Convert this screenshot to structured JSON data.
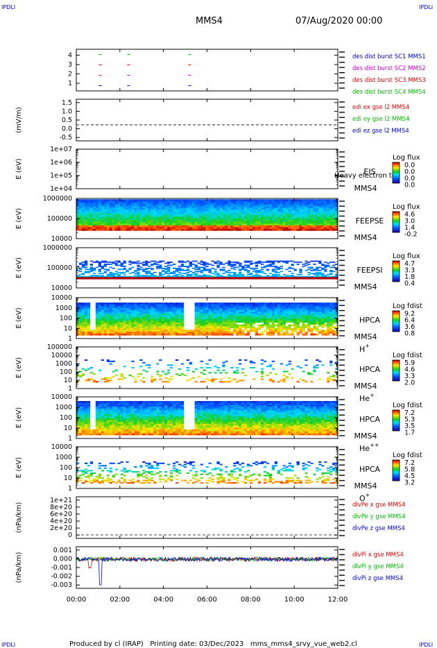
{
  "header": {
    "corner_label": "IPDLI",
    "title": "MMS4",
    "date": "07/Aug/2020 00:00"
  },
  "footer": {
    "text": "Produced by cl (IRAP)   Printing date: 03/Dec/2023   mms_mms4_srvy_vue_web2.cl"
  },
  "time_axis": {
    "ticks": [
      "00:00",
      "02:00",
      "04:00",
      "06:00",
      "08:00",
      "10:00",
      "12:00"
    ],
    "range_hours": [
      0,
      12
    ]
  },
  "colors": {
    "mms1": "#0000cc",
    "mms2": "#cc00cc",
    "mms3": "#dd0000",
    "mms4": "#00bb00"
  },
  "chart_data": [
    {
      "type": "scatter",
      "ylabel": "",
      "yticks": [
        "4",
        "3",
        "2",
        "1"
      ],
      "ylim": [
        0.5,
        4.5
      ],
      "legend": [
        {
          "name": "des dist burst SC1 MMS1",
          "color": "#0000cc"
        },
        {
          "name": "des dist burst SC2 MMS2",
          "color": "#cc00cc"
        },
        {
          "name": "des dist burst SC3 MMS3",
          "color": "#dd0000"
        },
        {
          "name": "des dist burst SC4 MMS4",
          "color": "#00bb00"
        }
      ],
      "series": [
        {
          "y": 4,
          "color": "#00bb00",
          "x": [
            1.1,
            2.4,
            5.2
          ]
        },
        {
          "y": 3,
          "color": "#dd0000",
          "x": [
            1.1,
            2.4,
            5.2
          ]
        },
        {
          "y": 2,
          "color": "#cc00cc",
          "x": [
            1.1,
            2.4,
            5.2
          ]
        },
        {
          "y": 1,
          "color": "#0000cc",
          "x": [
            1.1,
            2.4,
            5.2
          ]
        }
      ]
    },
    {
      "type": "line",
      "ylabel": "(mV/m)",
      "yticks": [
        "1.5",
        "1.0",
        "0.5",
        "0.0",
        "-0.5"
      ],
      "ylim": [
        -1.0,
        1.6
      ],
      "zero_line": true,
      "legend": [
        {
          "name": "edi ex gse l2 MMS4",
          "color": "#dd0000"
        },
        {
          "name": "edi ey gse l2 MMS4",
          "color": "#00bb00"
        },
        {
          "name": "edi ez gse l2 MMS4",
          "color": "#0000cc"
        }
      ]
    },
    {
      "type": "heatmap",
      "ylabel": "E (eV)",
      "yticks": [
        "1e+07",
        "1e+06",
        "1e+05",
        "1e+04"
      ],
      "side_label": "EIS",
      "side_extra": "Heavy electron to",
      "spacecraft": "MMS4",
      "colorbar_title": "Log flux",
      "colorbar_ticks": [
        "0.0",
        "0.0",
        "0.0",
        "0.0"
      ]
    },
    {
      "type": "heatmap",
      "ylabel": "E (eV)",
      "yticks": [
        "1000000",
        "100000",
        "10000"
      ],
      "side_label": "FEEPSE",
      "spacecraft": "MMS4",
      "colorbar_title": "Log flux",
      "colorbar_ticks": [
        "4.6",
        "3.0",
        "1.4",
        "-0.2"
      ]
    },
    {
      "type": "heatmap",
      "ylabel": "E (eV)",
      "yticks": [
        "1000000",
        "100000",
        "10000"
      ],
      "side_label": "FEEPSI",
      "spacecraft": "MMS4",
      "colorbar_title": "Log flux",
      "colorbar_ticks": [
        "4.7",
        "3.3",
        "1.8",
        "0.4"
      ]
    },
    {
      "type": "heatmap",
      "ylabel": "E (eV)",
      "yticks": [
        "10000",
        "1000",
        "100",
        "10",
        "1"
      ],
      "side_label": "HPCA",
      "spacecraft": "MMS4",
      "species": "H",
      "species_sup": "+",
      "colorbar_title": "Log fdist",
      "colorbar_ticks": [
        "9.2",
        "6.4",
        "3.6",
        "0.8"
      ]
    },
    {
      "type": "heatmap",
      "ylabel": "E (eV)",
      "yticks": [
        "100000",
        "10000",
        "1000",
        "100",
        "10",
        "1"
      ],
      "side_label": "HPCA",
      "spacecraft": "MMS4",
      "species": "He",
      "species_sup": "+",
      "colorbar_title": "Log fdist",
      "colorbar_ticks": [
        "5.9",
        "4.6",
        "3.3",
        "2.0"
      ]
    },
    {
      "type": "heatmap",
      "ylabel": "E (eV)",
      "yticks": [
        "10000",
        "1000",
        "100",
        "10",
        "1"
      ],
      "side_label": "HPCA",
      "spacecraft": "MMS4",
      "species": "He",
      "species_sup": "++",
      "colorbar_title": "Log fdist",
      "colorbar_ticks": [
        "7.2",
        "5.3",
        "3.5",
        "1.7"
      ]
    },
    {
      "type": "heatmap",
      "ylabel": "E (eV)",
      "yticks": [
        "10000",
        "1000",
        "100",
        "10",
        "1"
      ],
      "side_label": "HPCA",
      "spacecraft": "MMS4",
      "species": "O",
      "species_sup": "+",
      "colorbar_title": "Log fdist",
      "colorbar_ticks": [
        "7.2",
        "5.8",
        "4.5",
        "3.2"
      ]
    },
    {
      "type": "line",
      "ylabel": "(nPa/km)",
      "yticks": [
        "1e+21",
        "8e+20",
        "6e+20",
        "4e+20",
        "2e+20",
        "0"
      ],
      "ylim": [
        -1e+20,
        1.1e+21
      ],
      "zero_line": true,
      "legend": [
        {
          "name": "divPe x gse MMS4",
          "color": "#dd0000"
        },
        {
          "name": "divPe y gse MMS4",
          "color": "#00bb00"
        },
        {
          "name": "divPe z gse MMS4",
          "color": "#0000cc"
        }
      ]
    },
    {
      "type": "line",
      "ylabel": "(nPa/km)",
      "yticks": [
        "0.001",
        "0.000",
        "-0.001",
        "-0.002",
        "-0.003"
      ],
      "ylim": [
        -0.0035,
        0.0015
      ],
      "zero_line": true,
      "legend": [
        {
          "name": "divPi x gse MMS4",
          "color": "#dd0000"
        },
        {
          "name": "divPi y gse MMS4",
          "color": "#00bb00"
        },
        {
          "name": "divPi z gse MMS4",
          "color": "#0000cc"
        }
      ]
    }
  ]
}
